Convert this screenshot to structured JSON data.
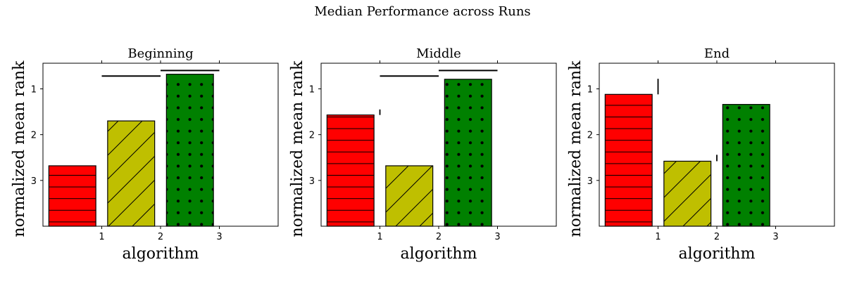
{
  "figure": {
    "suptitle": "Median Performance across Runs"
  },
  "chart_data": [
    {
      "type": "bar",
      "title": "Beginning",
      "xlabel": "algorithm",
      "ylabel": "normalized mean rank",
      "x": [
        0.5,
        1.5,
        2.5
      ],
      "values": [
        2.68,
        1.7,
        0.68
      ],
      "colors": [
        "#ff0000",
        "#bfbf00",
        "#008000"
      ],
      "hatches": [
        "horizontal",
        "diagonal",
        "dots"
      ],
      "xticks": [
        1,
        2,
        3
      ],
      "yticks": [
        1,
        2,
        3
      ],
      "xlim": [
        0,
        4
      ],
      "ylim": [
        4,
        0.44
      ],
      "y_inverted": true,
      "error_bars": [
        null,
        null,
        null
      ],
      "significance_lines": [
        {
          "x": [
            1,
            2
          ],
          "y": 0.72
        },
        {
          "x": [
            2,
            3
          ],
          "y": 0.6
        }
      ]
    },
    {
      "type": "bar",
      "title": "Middle",
      "xlabel": "algorithm",
      "ylabel": "normalized mean rank",
      "x": [
        0.5,
        1.5,
        2.5
      ],
      "values": [
        1.57,
        2.68,
        0.79
      ],
      "colors": [
        "#ff0000",
        "#bfbf00",
        "#008000"
      ],
      "hatches": [
        "horizontal",
        "diagonal",
        "dots"
      ],
      "xticks": [
        1,
        2,
        3
      ],
      "yticks": [
        1,
        2,
        3
      ],
      "xlim": [
        0,
        4
      ],
      "ylim": [
        4,
        0.44
      ],
      "y_inverted": true,
      "error_bars": [
        {
          "x": 1,
          "top": 1.45
        },
        null,
        null
      ],
      "significance_lines": [
        {
          "x": [
            1,
            2
          ],
          "y": 0.72
        },
        {
          "x": [
            2,
            3
          ],
          "y": 0.6
        }
      ]
    },
    {
      "type": "bar",
      "title": "End",
      "xlabel": "algorithm",
      "ylabel": "normalized mean rank",
      "x": [
        0.5,
        1.5,
        2.5
      ],
      "values": [
        1.12,
        2.58,
        1.34
      ],
      "colors": [
        "#ff0000",
        "#bfbf00",
        "#008000"
      ],
      "hatches": [
        "horizontal",
        "diagonal",
        "dots"
      ],
      "xticks": [
        1,
        2,
        3
      ],
      "yticks": [
        1,
        2,
        3
      ],
      "xlim": [
        0,
        4
      ],
      "ylim": [
        4,
        0.44
      ],
      "y_inverted": true,
      "error_bars": [
        {
          "x": 1,
          "top": 0.78
        },
        {
          "x": 2,
          "top": 2.44
        },
        null
      ],
      "significance_lines": []
    }
  ]
}
